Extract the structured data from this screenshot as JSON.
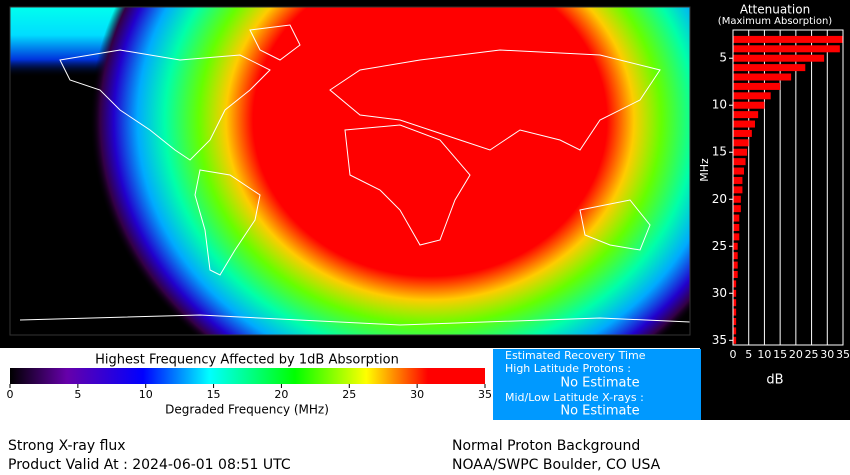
{
  "chart_data": {
    "type": "hbar",
    "title": "Attenuation",
    "subtitle": "(Maximum Absorption)",
    "xlabel": "dB",
    "ylabel": "MHz",
    "y": [
      3,
      4,
      5,
      6,
      7,
      8,
      9,
      10,
      11,
      12,
      13,
      14,
      15,
      16,
      17,
      18,
      19,
      20,
      21,
      22,
      23,
      24,
      25,
      26,
      27,
      28,
      29,
      30,
      31,
      32,
      33,
      34,
      35
    ],
    "values": [
      35,
      34,
      29,
      23,
      18.5,
      15,
      12,
      10,
      8,
      7,
      6,
      5,
      4.5,
      4,
      3.5,
      3,
      3,
      2.5,
      2.5,
      2,
      2,
      2,
      1.5,
      1.5,
      1.5,
      1.5,
      1,
      1,
      1,
      1,
      1,
      1,
      1
    ],
    "color": "#ff0000",
    "xlim": [
      0,
      35
    ],
    "xticks": [
      0,
      5,
      10,
      15,
      20,
      25,
      30,
      35
    ],
    "ylim": [
      2,
      35.5
    ],
    "yticks": [
      5,
      10,
      15,
      20,
      25,
      30,
      35
    ],
    "grid": true
  },
  "colorbar": {
    "title": "Highest Frequency Affected by 1dB Absorption",
    "label": "Degraded Frequency (MHz)",
    "xlim": [
      0,
      35
    ],
    "xticks": [
      0,
      5,
      10,
      15,
      20,
      25,
      30,
      35
    ]
  },
  "recovery": {
    "title": "Estimated Recovery Time",
    "items": [
      {
        "label": "High Latitude Protons :",
        "value": "No Estimate"
      },
      {
        "label": "Mid/Low Latitude X-rays :",
        "value": "No Estimate"
      }
    ]
  },
  "footer": {
    "left": [
      "Strong X-ray flux",
      "Product Valid At : 2024-06-01 08:51 UTC"
    ],
    "right": [
      "Normal Proton Background",
      "NOAA/SWPC Boulder, CO USA"
    ]
  }
}
